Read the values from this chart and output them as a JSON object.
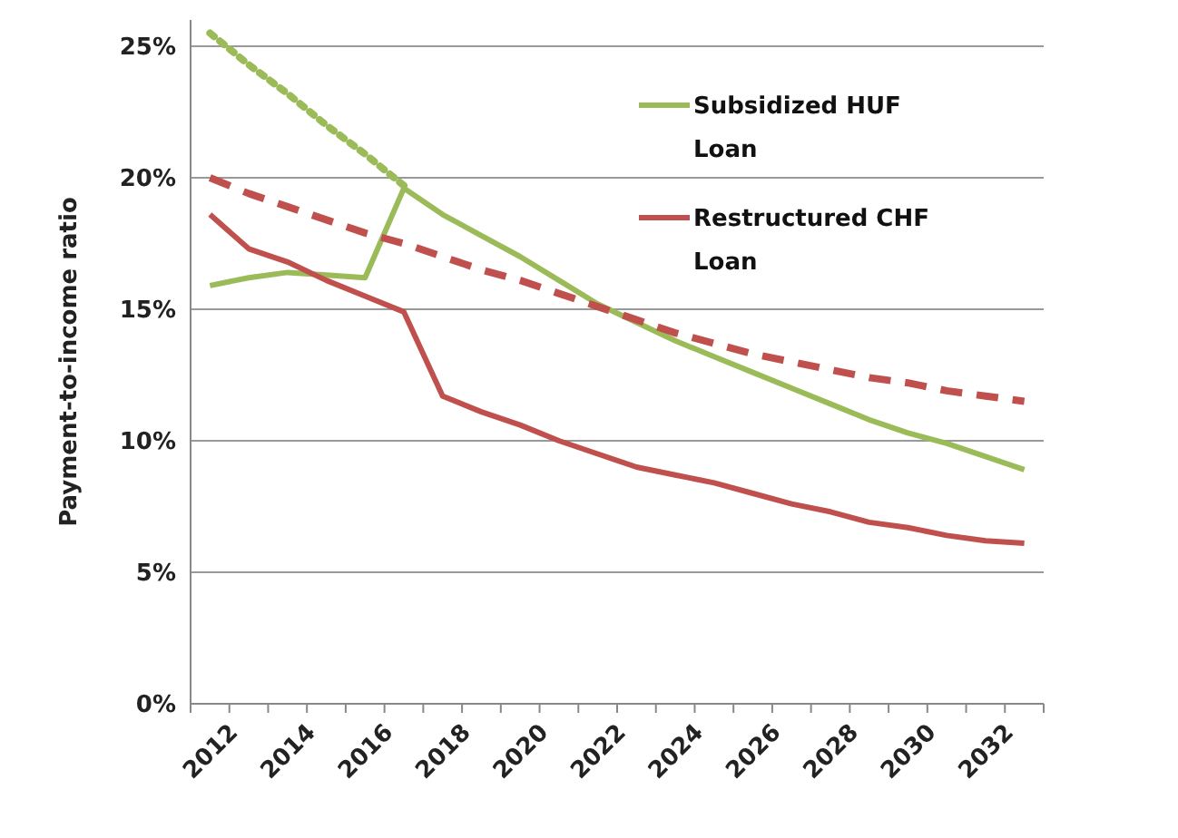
{
  "chart_data": {
    "type": "line",
    "ylabel": "Payment-to-income ratio",
    "categories": [
      "2012",
      null,
      "2014",
      null,
      "2016",
      null,
      "2018",
      null,
      "2020",
      null,
      "2022",
      null,
      "2024",
      null,
      "2026",
      null,
      "2028",
      null,
      "2030",
      null,
      "2032",
      null
    ],
    "series": [
      {
        "name": "Subsidized HUF Loan",
        "color": "#9bbb59",
        "line_style": "solid",
        "values": [
          15.9,
          16.2,
          16.4,
          16.3,
          16.2,
          19.6,
          18.6,
          17.8,
          17.0,
          16.1,
          15.2,
          14.5,
          13.8,
          13.2,
          12.6,
          12.0,
          11.4,
          10.8,
          10.3,
          9.9,
          9.4,
          8.9
        ]
      },
      {
        "color": "#9bbb59",
        "line_style": "dotted",
        "values": [
          25.5,
          24.3,
          23.2,
          22.0,
          20.9,
          19.7,
          null,
          null,
          null,
          null,
          null,
          null,
          null,
          null,
          null,
          null,
          null,
          null,
          null,
          null,
          null,
          null
        ]
      },
      {
        "name": "Restructured CHF Loan",
        "color": "#c0504d",
        "line_style": "solid",
        "values": [
          18.6,
          17.3,
          16.8,
          16.1,
          15.5,
          14.9,
          11.7,
          11.1,
          10.6,
          10.0,
          9.5,
          9.0,
          8.7,
          8.4,
          8.0,
          7.6,
          7.3,
          6.9,
          6.7,
          6.4,
          6.2,
          6.1
        ]
      },
      {
        "color": "#c0504d",
        "line_style": "dashed",
        "values": [
          20.0,
          19.4,
          18.9,
          18.4,
          17.9,
          17.5,
          17.0,
          16.5,
          16.1,
          15.6,
          15.1,
          14.6,
          14.1,
          13.7,
          13.3,
          13.0,
          12.7,
          12.4,
          12.2,
          11.9,
          11.7,
          11.5
        ]
      }
    ],
    "ylim": [
      0,
      26
    ],
    "yticks": [
      {
        "value": 0,
        "label": "0%"
      },
      {
        "value": 5,
        "label": "5%"
      },
      {
        "value": 10,
        "label": "10%"
      },
      {
        "value": 15,
        "label": "15%"
      },
      {
        "value": 20,
        "label": "20%"
      },
      {
        "value": 25,
        "label": "25%"
      }
    ],
    "grid": "y",
    "legend": "top right",
    "marker": "none"
  }
}
